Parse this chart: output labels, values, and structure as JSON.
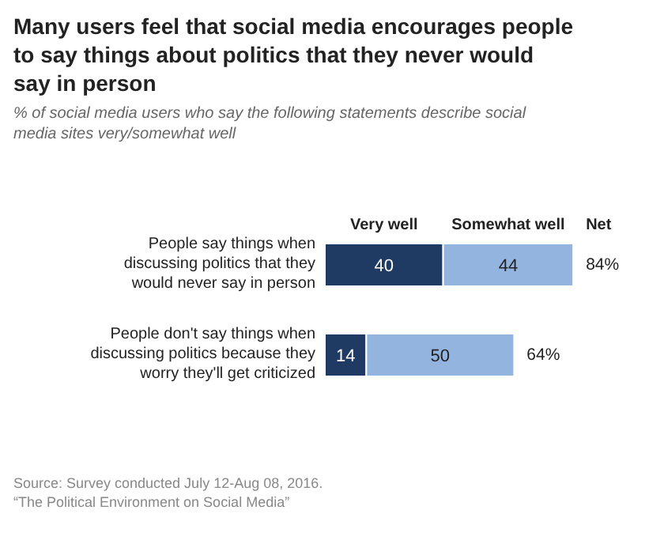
{
  "chart_data": {
    "type": "bar",
    "orientation": "horizontal",
    "stacked": true,
    "title": "Many users feel that social media encourages people to say things about politics that they never would say in person",
    "subtitle": "% of social media users who say the following statements describe social media sites very/somewhat well",
    "categories": [
      "People say things when discussing politics that they would never say in person",
      "People don't say things when discussing politics because they worry they'll get criticized"
    ],
    "series": [
      {
        "name": "Very well",
        "color": "#1f3b63",
        "values": [
          40,
          14
        ]
      },
      {
        "name": "Somewhat well",
        "color": "#93b4df",
        "values": [
          44,
          50
        ]
      }
    ],
    "data_labels": true,
    "totals": [
      "84%",
      "64%"
    ],
    "legend": "top",
    "annotations": [
      "Net",
      "Source: Survey conducted July 12-Aug 08, 2016.",
      "“The Political Environment on Social Media”"
    ]
  }
}
